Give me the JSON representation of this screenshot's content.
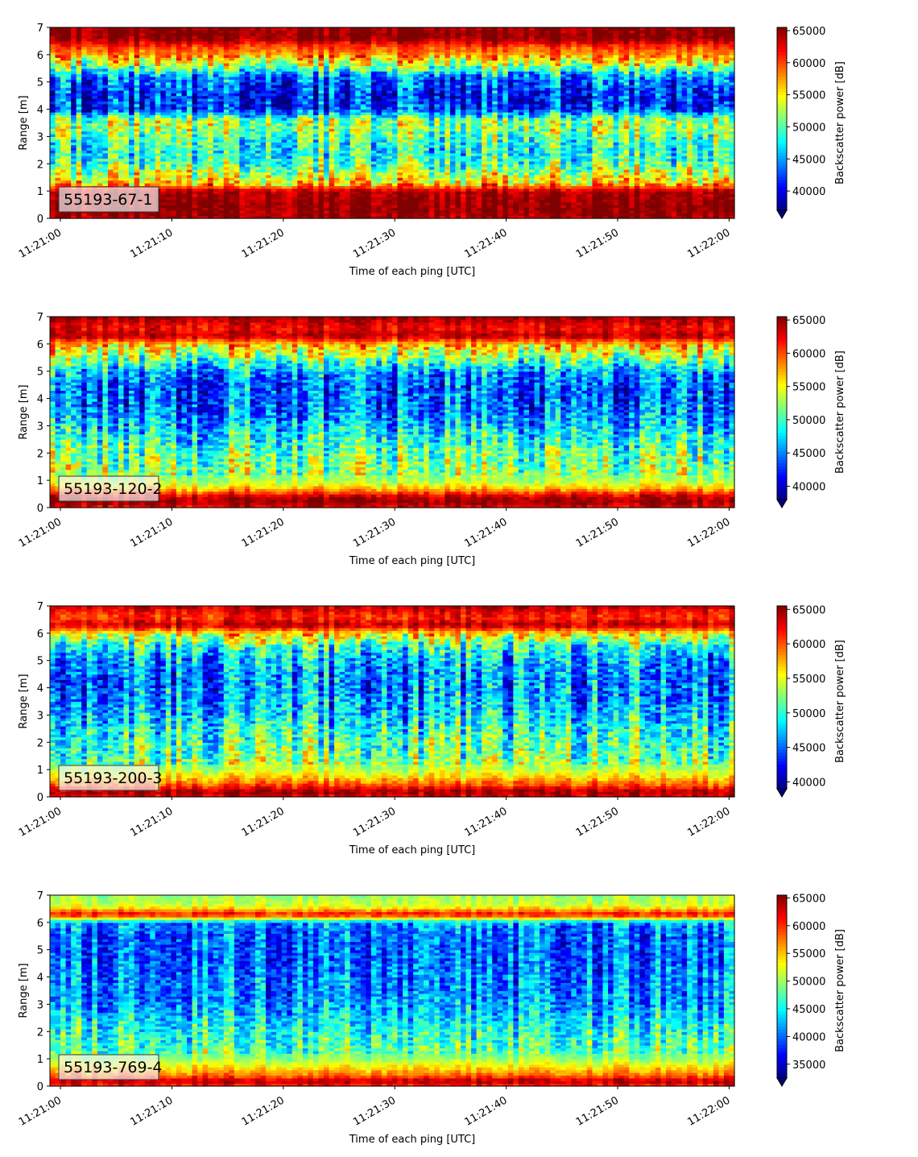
{
  "colormap": "jet",
  "colors": {
    "jet_stops": [
      "#00007f",
      "#0000ff",
      "#007fff",
      "#00ffff",
      "#7fff7f",
      "#ffff00",
      "#ff7f00",
      "#ff0000",
      "#7f0000"
    ],
    "label_box_fill": "#f4f4f4",
    "label_box_stroke": "#333333"
  },
  "chart_data": [
    {
      "type": "heatmap",
      "panel_label": "55193-67-1",
      "xlabel": "Time of each ping [UTC]",
      "ylabel": "Range [m]",
      "colorbar_label": "Backscatter power [dB]",
      "x_ticks": [
        "11:21:00",
        "11:21:10",
        "11:21:20",
        "11:21:30",
        "11:21:40",
        "11:21:50",
        "11:22:00"
      ],
      "y_ticks": [
        "0",
        "1",
        "2",
        "3",
        "4",
        "5",
        "6",
        "7"
      ],
      "xlim": [
        "11:21:00",
        "11:22:00"
      ],
      "ylim": [
        0,
        7
      ],
      "colorbar_ticks": [
        "40000",
        "45000",
        "50000",
        "55000",
        "60000",
        "65000"
      ],
      "colorbar_ticks_values": [
        40000,
        45000,
        50000,
        55000,
        60000,
        65000
      ],
      "clim": [
        37000,
        65500
      ],
      "profile_range_m": [
        0,
        0.2,
        0.5,
        1.0,
        1.3,
        2.0,
        2.5,
        3.0,
        3.3,
        3.6,
        4.0,
        4.5,
        5.2,
        5.6,
        6.0,
        6.3,
        6.6,
        7.0
      ],
      "profile_power": [
        64000,
        65000,
        65000,
        64000,
        56000,
        50000,
        48000,
        50000,
        52000,
        52000,
        42000,
        41000,
        44000,
        52000,
        58000,
        60000,
        65000,
        65000
      ]
    },
    {
      "type": "heatmap",
      "panel_label": "55193-120-2",
      "xlabel": "Time of each ping [UTC]",
      "ylabel": "Range [m]",
      "colorbar_label": "Backscatter power [dB]",
      "x_ticks": [
        "11:21:00",
        "11:21:10",
        "11:21:20",
        "11:21:30",
        "11:21:40",
        "11:21:50",
        "11:22:00"
      ],
      "y_ticks": [
        "0",
        "1",
        "2",
        "3",
        "4",
        "5",
        "6",
        "7"
      ],
      "xlim": [
        "11:21:00",
        "11:22:00"
      ],
      "ylim": [
        0,
        7
      ],
      "colorbar_ticks": [
        "40000",
        "45000",
        "50000",
        "55000",
        "60000",
        "65000"
      ],
      "colorbar_ticks_values": [
        40000,
        45000,
        50000,
        55000,
        60000,
        65000
      ],
      "clim": [
        38000,
        65500
      ],
      "profile_range_m": [
        0,
        0.2,
        0.4,
        0.7,
        1.0,
        1.5,
        2.0,
        2.5,
        3.0,
        3.5,
        4.0,
        4.5,
        5.0,
        5.5,
        6.0,
        6.3,
        6.6,
        7.0
      ],
      "profile_power": [
        62000,
        65000,
        64000,
        57000,
        53000,
        52000,
        51000,
        49000,
        47000,
        45000,
        44000,
        44000,
        46000,
        52000,
        57000,
        64000,
        62000,
        65000
      ]
    },
    {
      "type": "heatmap",
      "panel_label": "55193-200-3",
      "xlabel": "Time of each ping [UTC]",
      "ylabel": "Range [m]",
      "colorbar_label": "Backscatter power [dB]",
      "x_ticks": [
        "11:21:00",
        "11:21:10",
        "11:21:20",
        "11:21:30",
        "11:21:40",
        "11:21:50",
        "11:22:00"
      ],
      "y_ticks": [
        "0",
        "1",
        "2",
        "3",
        "4",
        "5",
        "6",
        "7"
      ],
      "xlim": [
        "11:21:00",
        "11:22:00"
      ],
      "ylim": [
        0,
        7
      ],
      "colorbar_ticks": [
        "40000",
        "45000",
        "50000",
        "55000",
        "60000",
        "65000"
      ],
      "colorbar_ticks_values": [
        40000,
        45000,
        50000,
        55000,
        60000,
        65000
      ],
      "clim": [
        39000,
        65500
      ],
      "profile_range_m": [
        0,
        0.2,
        0.4,
        0.7,
        1.0,
        1.5,
        2.0,
        2.5,
        3.0,
        3.5,
        4.0,
        4.5,
        5.0,
        5.5,
        6.0,
        6.3,
        6.6,
        7.0
      ],
      "profile_power": [
        63000,
        65000,
        61000,
        57000,
        54000,
        52000,
        51000,
        50000,
        48000,
        47000,
        46000,
        46000,
        47000,
        50000,
        56000,
        64000,
        61000,
        64000
      ]
    },
    {
      "type": "heatmap",
      "panel_label": "55193-769-4",
      "xlabel": "Time of each ping [UTC]",
      "ylabel": "Range [m]",
      "colorbar_label": "Backscatter power [dB]",
      "x_ticks": [
        "11:21:00",
        "11:21:10",
        "11:21:20",
        "11:21:30",
        "11:21:40",
        "11:21:50",
        "11:22:00"
      ],
      "y_ticks": [
        "0",
        "1",
        "2",
        "3",
        "4",
        "5",
        "6",
        "7"
      ],
      "xlim": [
        "11:21:00",
        "11:22:00"
      ],
      "ylim": [
        0,
        7
      ],
      "colorbar_ticks": [
        "35000",
        "40000",
        "45000",
        "50000",
        "55000",
        "60000",
        "65000"
      ],
      "colorbar_ticks_values": [
        35000,
        40000,
        45000,
        50000,
        55000,
        60000,
        65000
      ],
      "clim": [
        32500,
        65500
      ],
      "profile_range_m": [
        0,
        0.2,
        0.4,
        0.7,
        1.0,
        1.5,
        2.0,
        2.5,
        3.0,
        3.5,
        4.0,
        4.5,
        5.0,
        5.5,
        6.0,
        6.3,
        6.6,
        7.0
      ],
      "profile_power": [
        60000,
        64000,
        58000,
        54000,
        50000,
        47000,
        46000,
        44000,
        42000,
        41000,
        41000,
        40000,
        40000,
        40000,
        42000,
        62000,
        52000,
        50000
      ]
    }
  ]
}
